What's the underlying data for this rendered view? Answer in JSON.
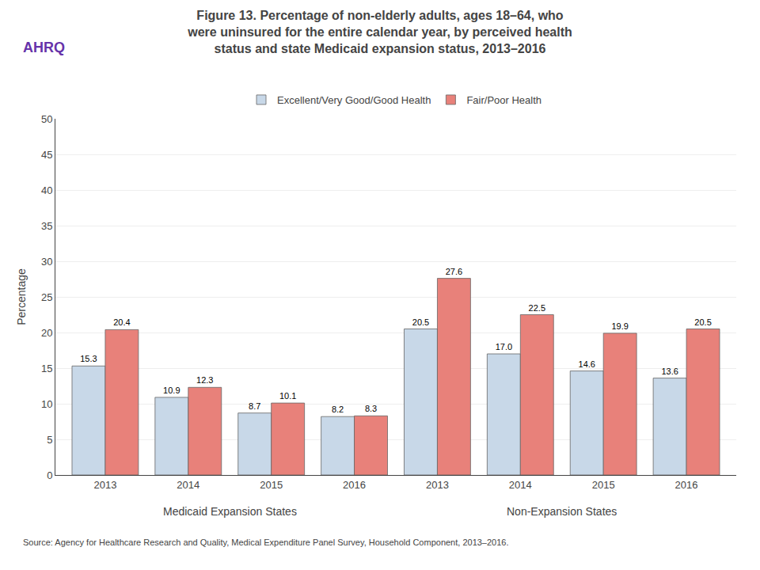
{
  "chart_data": {
    "type": "bar",
    "title": "Figure 13. Percentage of non-elderly adults, ages 18–64, who\nwere uninsured for the entire calendar year, by perceived health\nstatus and state Medicaid expansion status, 2013–2016",
    "y_label": "Percentage",
    "categories": [
      "2013",
      "2014",
      "2015",
      "2016",
      "2013",
      "2014",
      "2015",
      "2016"
    ],
    "series": [
      {
        "name": "Excellent/Very Good/Good Health",
        "color": "#c8d8e8",
        "values": [
          15.3,
          10.9,
          8.7,
          8.2,
          20.5,
          17.0,
          14.6,
          13.6
        ],
        "value_labels": [
          "15.3",
          "10.9",
          "8.7",
          "8.2",
          "20.5",
          "17.0",
          "14.6",
          "13.6"
        ]
      },
      {
        "name": "Fair/Poor Health",
        "color": "#e8817a",
        "values": [
          20.4,
          12.3,
          10.1,
          8.3,
          27.6,
          22.5,
          19.9,
          20.5
        ],
        "value_labels": [
          "20.4",
          "12.3",
          "10.1",
          "8.3",
          "27.6",
          "22.5",
          "19.9",
          "20.5"
        ]
      }
    ],
    "annotations": [
      "Medicaid Expansion States",
      "Non-Expansion States",
      "AHRQ",
      "Source: Agency for Healthcare Research and Quality, Medical Expenditure Panel Survey, Household Component, 2013–2016."
    ],
    "ylim": [
      0,
      50
    ],
    "yticks": [
      0,
      5,
      10,
      15,
      20,
      25,
      30,
      35,
      40,
      45,
      50
    ],
    "grid": true,
    "legend": "top",
    "data_labels": true
  }
}
